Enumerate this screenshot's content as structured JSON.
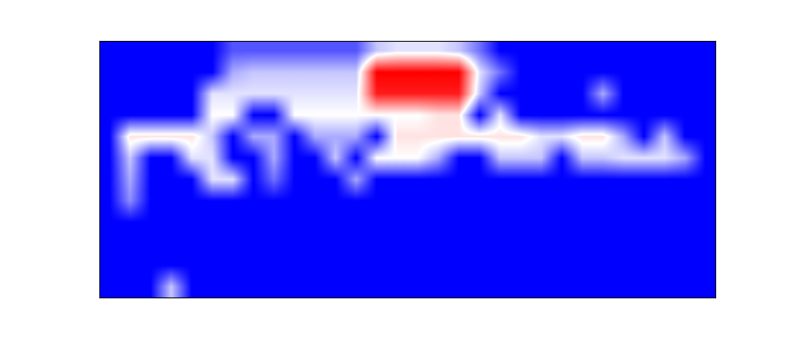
{
  "chart_data": {
    "type": "heatmap",
    "tick_labels": false,
    "cells": [
      [
        0,
        0,
        0,
        0,
        0,
        0,
        0.15,
        0.15,
        0.15,
        0.15,
        0.15,
        0.15,
        0.15,
        0.35,
        0.4,
        0.4,
        0.4,
        0.35,
        0.2,
        0,
        0,
        0,
        0,
        0,
        0,
        0,
        0,
        0,
        0,
        0
      ],
      [
        0,
        0,
        0,
        0,
        0,
        0,
        0.3,
        0.35,
        0.35,
        0.35,
        0.35,
        0.35,
        0.35,
        0.9,
        0.9,
        0.9,
        0.9,
        0.9,
        0.4,
        0.2,
        0,
        0,
        0,
        0,
        0,
        0,
        0,
        0,
        0,
        0
      ],
      [
        0,
        0,
        0,
        0,
        0,
        0.4,
        0.4,
        0.4,
        0.4,
        0.4,
        0.4,
        0.4,
        0.4,
        0.85,
        0.85,
        0.85,
        0.85,
        0.85,
        0.35,
        0,
        0,
        0,
        0,
        0,
        0.3,
        0,
        0,
        0,
        0,
        0
      ],
      [
        0,
        0,
        0,
        0,
        0,
        0.45,
        0.45,
        0,
        0,
        0.45,
        0.45,
        0.45,
        0.45,
        0.45,
        0.45,
        0.45,
        0.5,
        0.5,
        0,
        0.4,
        0,
        0,
        0,
        0,
        0,
        0,
        0,
        0,
        0,
        0
      ],
      [
        0,
        0.5,
        0.5,
        0.5,
        0.5,
        0.35,
        0,
        0.3,
        0.3,
        0,
        0.3,
        0.3,
        0.3,
        0,
        0.5,
        0.5,
        0.5,
        0.5,
        0.5,
        0.5,
        0.5,
        0.4,
        0.4,
        0.5,
        0.5,
        0.3,
        0,
        0.35,
        0,
        0
      ],
      [
        0,
        0.35,
        0,
        0,
        0.4,
        0.4,
        0,
        0,
        0.3,
        0,
        0,
        0.35,
        0,
        0.45,
        0.45,
        0.45,
        0.3,
        0,
        0,
        0.35,
        0.35,
        0.35,
        0,
        0.35,
        0.35,
        0.4,
        0.4,
        0.4,
        0.3,
        0
      ],
      [
        0,
        0.3,
        0,
        0,
        0,
        0.4,
        0.4,
        0,
        0.2,
        0,
        0,
        0,
        0.3,
        0,
        0,
        0,
        0,
        0,
        0,
        0,
        0,
        0,
        0,
        0,
        0,
        0,
        0,
        0,
        0,
        0
      ],
      [
        0,
        0.25,
        0,
        0,
        0,
        0,
        0,
        0,
        0,
        0,
        0,
        0,
        0,
        0,
        0,
        0,
        0,
        0,
        0,
        0,
        0,
        0,
        0,
        0,
        0,
        0,
        0,
        0,
        0,
        0
      ],
      [
        0,
        0,
        0,
        0,
        0,
        0,
        0,
        0,
        0,
        0,
        0,
        0,
        0,
        0,
        0,
        0,
        0,
        0,
        0,
        0,
        0,
        0,
        0,
        0,
        0,
        0,
        0,
        0,
        0,
        0
      ],
      [
        0,
        0,
        0,
        0,
        0,
        0,
        0,
        0,
        0,
        0,
        0,
        0,
        0,
        0,
        0,
        0,
        0,
        0,
        0,
        0,
        0,
        0,
        0,
        0,
        0,
        0,
        0,
        0,
        0,
        0
      ],
      [
        0,
        0,
        0,
        0,
        0,
        0,
        0,
        0,
        0,
        0,
        0,
        0,
        0,
        0,
        0,
        0,
        0,
        0,
        0,
        0,
        0,
        0,
        0,
        0,
        0,
        0,
        0,
        0,
        0,
        0
      ],
      [
        0,
        0,
        0,
        0.35,
        0,
        0,
        0,
        0,
        0,
        0,
        0,
        0,
        0,
        0,
        0,
        0,
        0,
        0,
        0,
        0,
        0,
        0,
        0,
        0,
        0,
        0,
        0,
        0,
        0,
        0
      ]
    ]
  }
}
